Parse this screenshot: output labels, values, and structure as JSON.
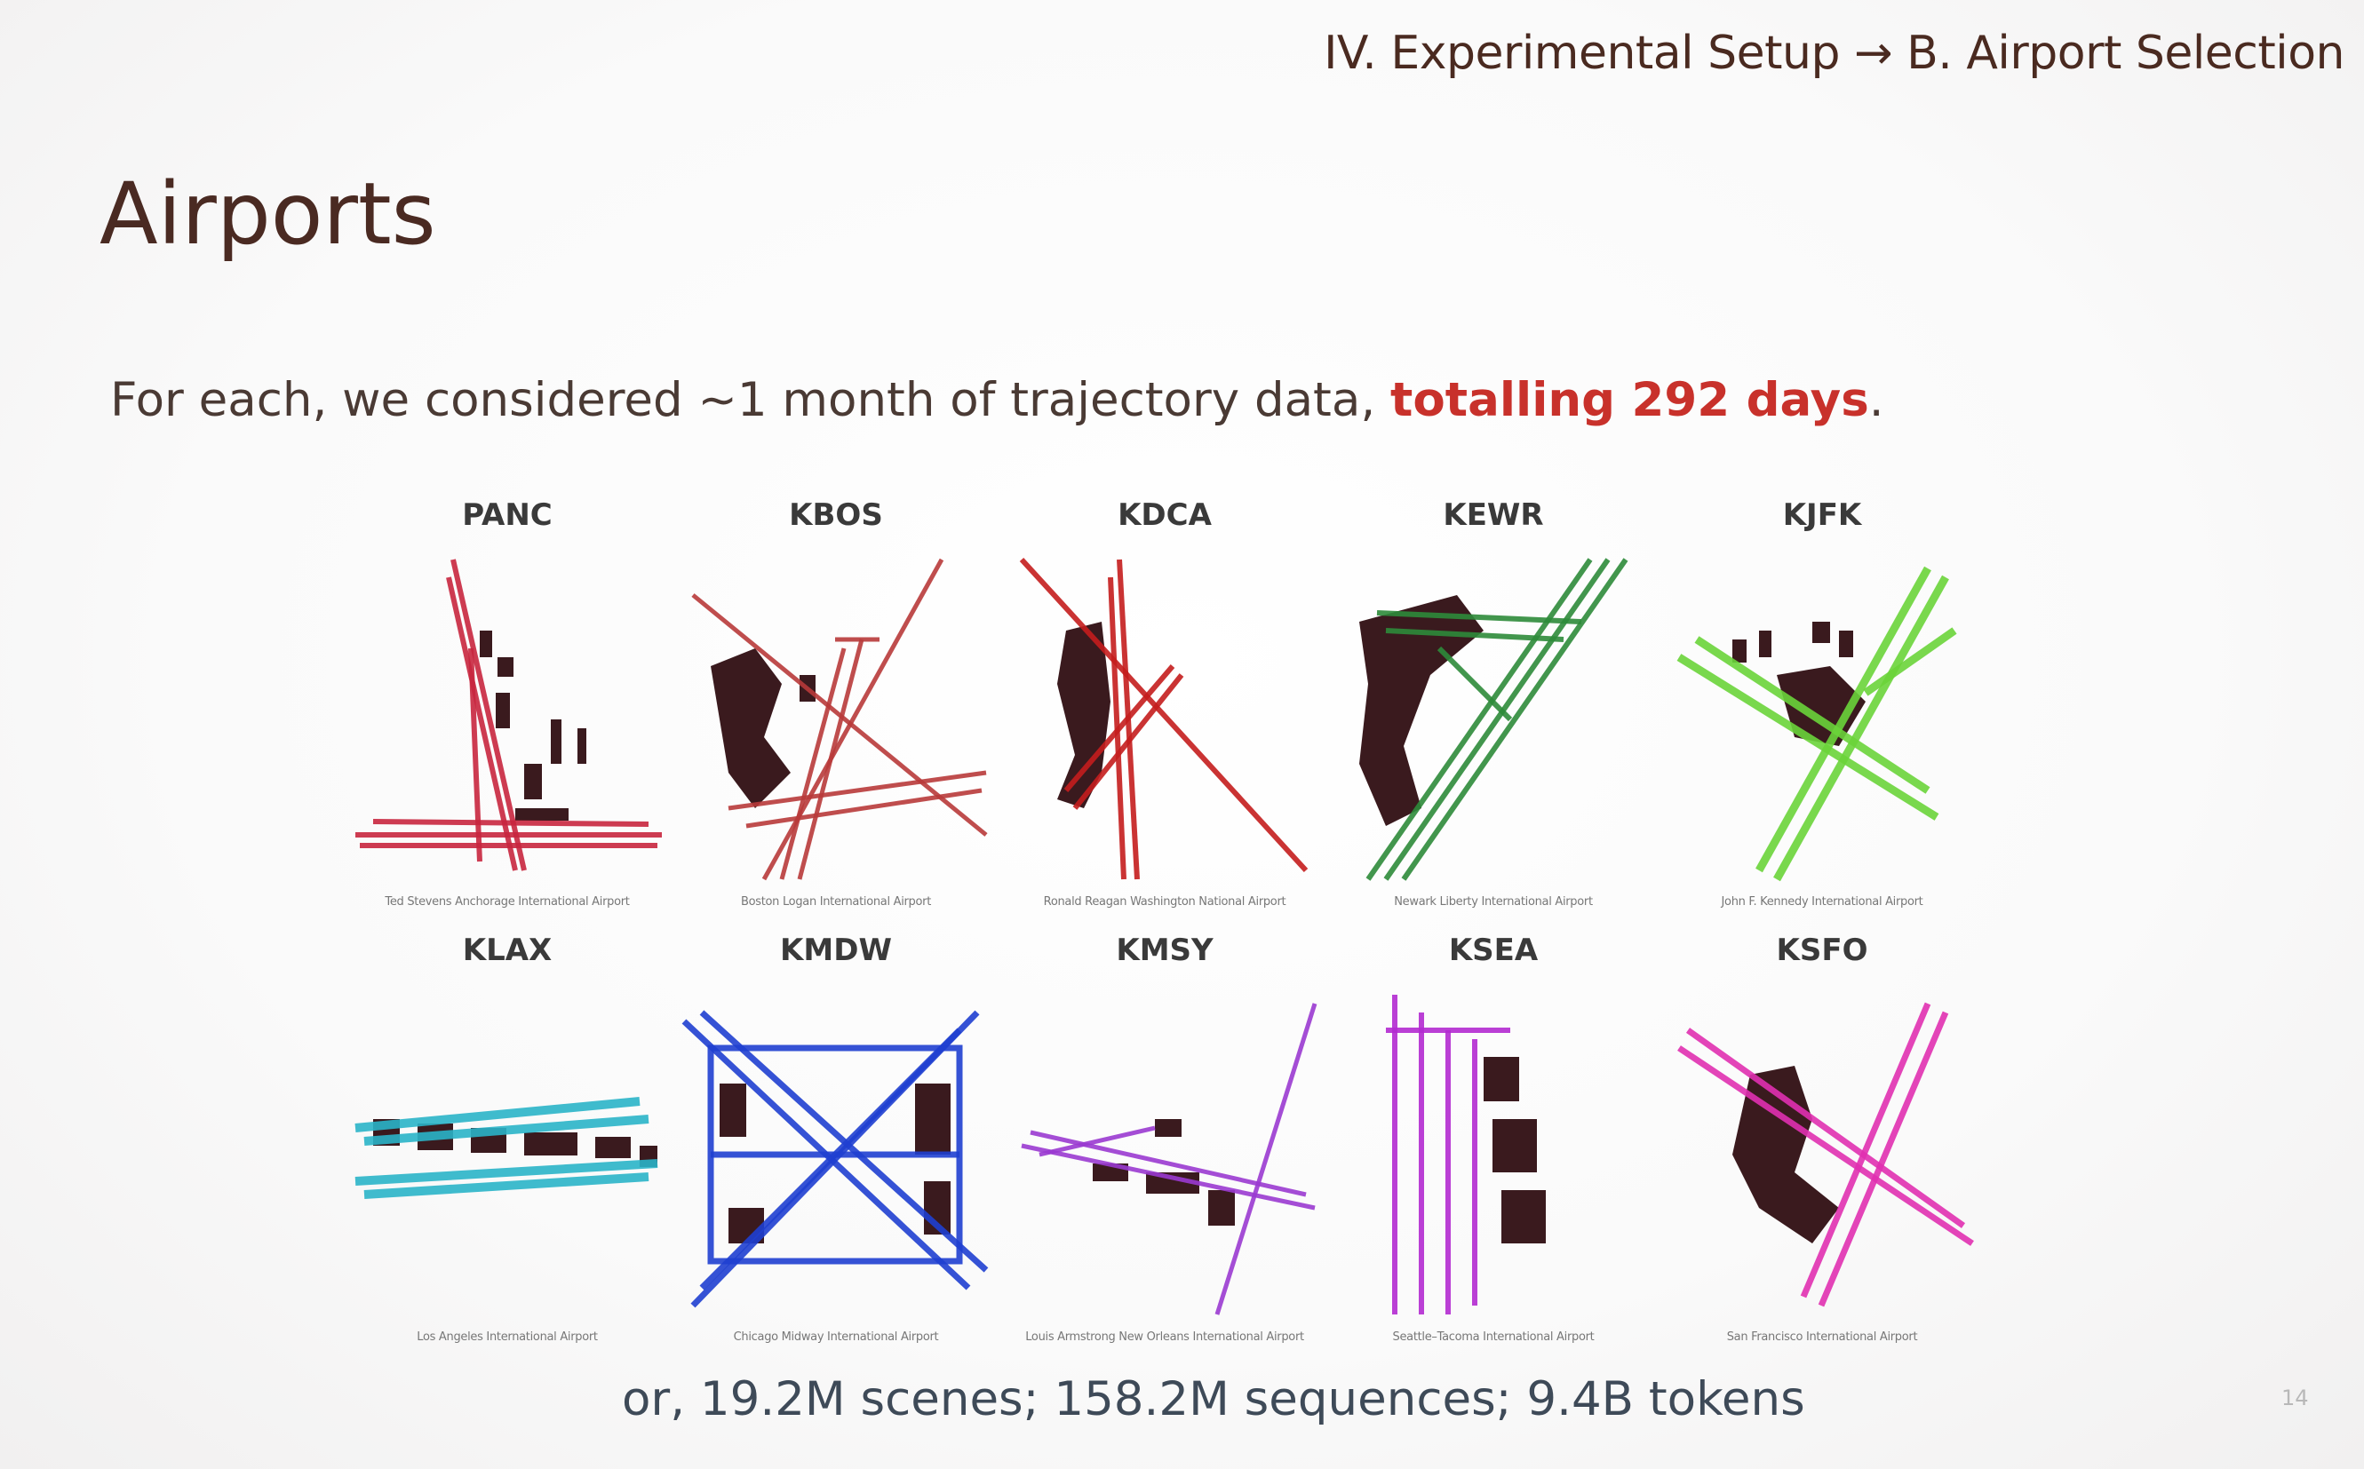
{
  "breadcrumb": "IV. Experimental Setup → B. Airport Selection",
  "title": "Airports",
  "intro": {
    "text": "For each, we considered ~1 month of trajectory data, ",
    "highlight": "totalling 292 days",
    "end": "."
  },
  "airports": [
    {
      "code": "PANC",
      "caption": "Ted Stevens Anchorage International Airport",
      "color": "#c8263e"
    },
    {
      "code": "KBOS",
      "caption": "Boston Logan International Airport",
      "color": "#b83a3a"
    },
    {
      "code": "KDCA",
      "caption": "Ronald Reagan Washington National Airport",
      "color": "#c41d1d"
    },
    {
      "code": "KEWR",
      "caption": "Newark Liberty International Airport",
      "color": "#2e8b3a"
    },
    {
      "code": "KJFK",
      "caption": "John F. Kennedy International Airport",
      "color": "#6ad43a"
    },
    {
      "code": "KLAX",
      "caption": "Los Angeles International Airport",
      "color": "#2ab4c8"
    },
    {
      "code": "KMDW",
      "caption": "Chicago Midway International Airport",
      "color": "#1f3fd0"
    },
    {
      "code": "KMSY",
      "caption": "Louis Armstrong New Orleans International Airport",
      "color": "#9a3ad0"
    },
    {
      "code": "KSEA",
      "caption": "Seattle–Tacoma International Airport",
      "color": "#b22ad0"
    },
    {
      "code": "KSFO",
      "caption": "San Francisco International Airport",
      "color": "#e030b0"
    }
  ],
  "footer": "or, 19.2M scenes; 158.2M sequences; 9.4B tokens",
  "page_number": "14"
}
